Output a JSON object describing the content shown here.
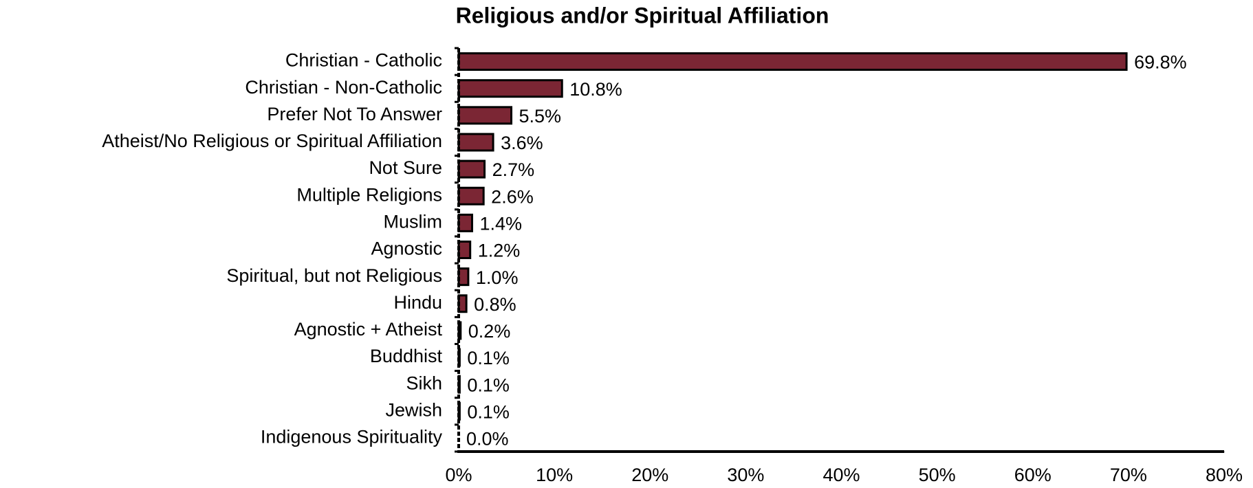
{
  "chart_data": {
    "type": "bar",
    "orientation": "horizontal",
    "title": "Religious and/or Spiritual Affiliation",
    "categories": [
      "Christian - Catholic",
      "Christian - Non-Catholic",
      "Prefer Not To Answer",
      "Atheist/No Religious or Spiritual Affiliation",
      "Not Sure",
      "Multiple Religions",
      "Muslim",
      "Agnostic",
      "Spiritual, but not Religious",
      "Hindu",
      "Agnostic + Atheist",
      "Buddhist",
      "Sikh",
      "Jewish",
      "Indigenous Spirituality"
    ],
    "values": [
      69.8,
      10.8,
      5.5,
      3.6,
      2.7,
      2.6,
      1.4,
      1.2,
      1.0,
      0.8,
      0.2,
      0.1,
      0.1,
      0.1,
      0.0
    ],
    "value_labels": [
      "69.8%",
      "10.8%",
      "5.5%",
      "3.6%",
      "2.7%",
      "2.6%",
      "1.4%",
      "1.2%",
      "1.0%",
      "0.8%",
      "0.2%",
      "0.1%",
      "0.1%",
      "0.1%",
      "0.0%"
    ],
    "color": "#7b2634",
    "xlim": [
      0,
      80
    ],
    "xticks": [
      {
        "value": 0,
        "label": "0%"
      },
      {
        "value": 10,
        "label": "10%"
      },
      {
        "value": 20,
        "label": "20%"
      },
      {
        "value": 30,
        "label": "30%"
      },
      {
        "value": 40,
        "label": "40%"
      },
      {
        "value": 50,
        "label": "50%"
      },
      {
        "value": 60,
        "label": "60%"
      },
      {
        "value": 70,
        "label": "70%"
      },
      {
        "value": 80,
        "label": "80%"
      }
    ],
    "grid": false
  }
}
